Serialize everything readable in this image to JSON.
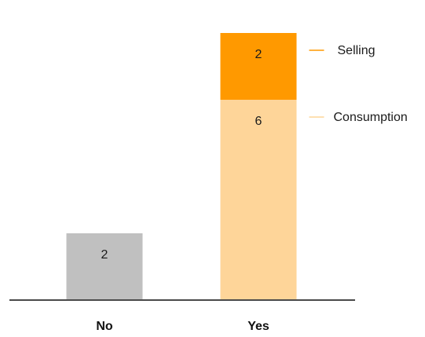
{
  "chart_data": {
    "type": "bar",
    "stacked": true,
    "categories": [
      "No",
      "Yes"
    ],
    "series": [
      {
        "name": "",
        "values": [
          2,
          null
        ],
        "color": "#c0c0c0"
      },
      {
        "name": "Consumption",
        "values": [
          null,
          6
        ],
        "color": "#fed599"
      },
      {
        "name": "Selling",
        "values": [
          null,
          2
        ],
        "color": "#ff9900"
      }
    ],
    "totals": [
      2,
      8
    ],
    "ylim": [
      0,
      8.6
    ],
    "grid": false,
    "legend": "right, inline labels with leader lines",
    "title": "",
    "xlabel": "",
    "ylabel": ""
  },
  "colors": {
    "axis": "#4a4a4a",
    "leader_selling": "#ff9900",
    "leader_consumption": "#fed599"
  }
}
